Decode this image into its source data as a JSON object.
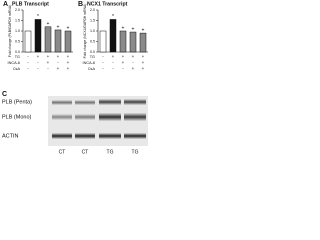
{
  "chart_data": [
    {
      "type": "bar",
      "panel": "A",
      "title": "PLB Transcript",
      "y_label": "Fold change (PLB/GAPDH mRNA)",
      "values": [
        1.0,
        1.55,
        1.2,
        1.05,
        1.0
      ],
      "colors": [
        "#ffffff",
        "#111111",
        "#8a8a8a",
        "#8a8a8a",
        "#8a8a8a"
      ],
      "markers": [
        null,
        "*",
        "+",
        "+",
        "+"
      ],
      "ylim": [
        0,
        2
      ],
      "yticks": [
        {
          "value": 0,
          "label": "0.0"
        },
        0.5,
        {
          "value": 1,
          "label": "1.0"
        },
        1.5,
        {
          "value": 2,
          "label": "2.0"
        }
      ],
      "treatments": [
        {
          "label": "TG",
          "signs": [
            "-",
            "+",
            "+",
            "+",
            "+"
          ]
        },
        {
          "label": "INCA-6",
          "signs": [
            "-",
            "-",
            "+",
            "-",
            "+"
          ]
        },
        {
          "label": "CsA",
          "signs": [
            "-",
            "-",
            "-",
            "+",
            "+"
          ]
        }
      ]
    },
    {
      "type": "bar",
      "panel": "B",
      "title": "NCX1 Transcript",
      "y_label": "Fold change (NCX1/GAPDH mRNA)",
      "values": [
        1.0,
        1.55,
        1.0,
        0.95,
        0.9
      ],
      "colors": [
        "#ffffff",
        "#111111",
        "#8a8a8a",
        "#8a8a8a",
        "#8a8a8a"
      ],
      "markers": [
        null,
        "*",
        "+",
        "+",
        "+"
      ],
      "ylim": [
        0,
        2
      ],
      "yticks": [
        {
          "value": 0,
          "label": "0.0"
        },
        0.5,
        {
          "value": 1,
          "label": "1.0"
        },
        1.5,
        {
          "value": 2,
          "label": "2.0"
        }
      ],
      "treatments": [
        {
          "label": "TG",
          "signs": [
            "-",
            "+",
            "+",
            "+",
            "+"
          ]
        },
        {
          "label": "INCA-6",
          "signs": [
            "-",
            "-",
            "+",
            "-",
            "+"
          ]
        },
        {
          "label": "CsA",
          "signs": [
            "-",
            "-",
            "-",
            "+",
            "+"
          ]
        }
      ]
    }
  ],
  "blot": {
    "panel": "C",
    "rows": [
      "PLB (Penta)",
      "PLB (Mono)",
      "ACTIN"
    ],
    "lanes": [
      "CT",
      "CT",
      "TG",
      "TG"
    ]
  }
}
